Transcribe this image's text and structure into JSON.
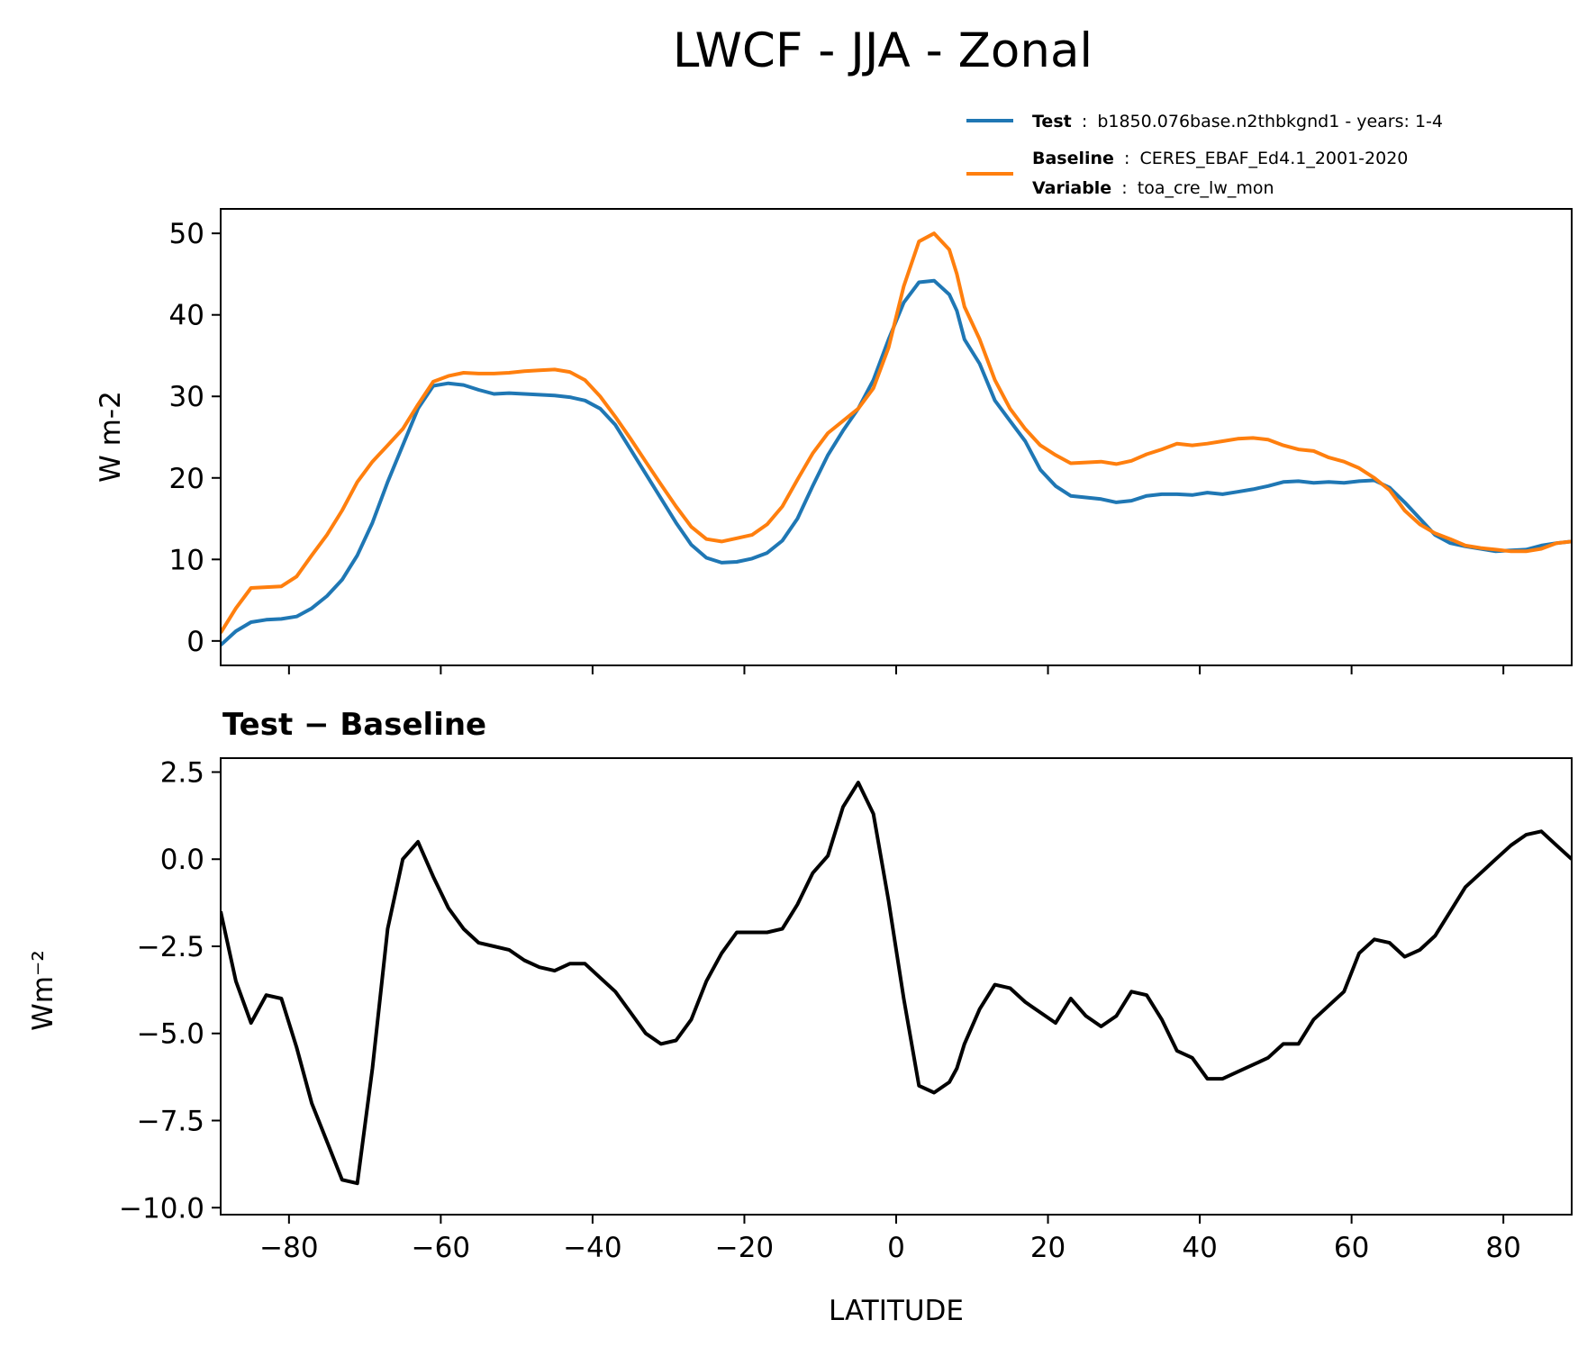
{
  "title": "LWCF - JJA - Zonal",
  "legend": {
    "test_label": "Test",
    "test_value": "b1850.076base.n2thbkgnd1 - years: 1-4",
    "baseline_label": "Baseline",
    "baseline_value": "CERES_EBAF_Ed4.1_2001-2020",
    "variable_label": "Variable",
    "variable_value": "toa_cre_lw_mon",
    "separator": ":"
  },
  "colors": {
    "test": "#1f77b4",
    "baseline": "#ff7f0e",
    "diff": "#000000"
  },
  "chart_data": [
    {
      "type": "line",
      "ylabel": "W m-2",
      "xlim": [
        -89,
        89
      ],
      "ylim": [
        -3,
        53
      ],
      "yticks": [
        "0",
        "10",
        "20",
        "30",
        "40",
        "50"
      ],
      "grid": false,
      "legend_placement": "top-right above plot",
      "x": [
        -89,
        -87,
        -85,
        -83,
        -81,
        -79,
        -77,
        -75,
        -73,
        -71,
        -69,
        -67,
        -65,
        -63,
        -61,
        -59,
        -57,
        -55,
        -53,
        -51,
        -49,
        -47,
        -45,
        -43,
        -41,
        -39,
        -37,
        -35,
        -33,
        -31,
        -29,
        -27,
        -25,
        -23,
        -21,
        -19,
        -17,
        -15,
        -13,
        -11,
        -9,
        -7,
        -5,
        -3,
        -1,
        1,
        3,
        5,
        7,
        8,
        9,
        11,
        13,
        15,
        17,
        19,
        21,
        23,
        25,
        27,
        29,
        31,
        33,
        35,
        37,
        39,
        41,
        43,
        45,
        47,
        49,
        51,
        53,
        55,
        57,
        59,
        61,
        63,
        65,
        67,
        69,
        71,
        73,
        75,
        77,
        79,
        81,
        83,
        85,
        87,
        89
      ],
      "series": [
        {
          "name": "Test",
          "values": [
            -0.5,
            1.2,
            2.3,
            2.6,
            2.7,
            3.0,
            4.0,
            5.5,
            7.5,
            10.5,
            14.5,
            19.5,
            24.0,
            28.5,
            31.3,
            31.6,
            31.4,
            30.8,
            30.3,
            30.4,
            30.3,
            30.2,
            30.1,
            29.9,
            29.5,
            28.5,
            26.5,
            23.5,
            20.5,
            17.5,
            14.5,
            11.8,
            10.2,
            9.6,
            9.7,
            10.1,
            10.8,
            12.3,
            15.0,
            19.0,
            22.8,
            25.8,
            28.5,
            32.0,
            37.0,
            41.5,
            44.0,
            44.2,
            42.5,
            40.5,
            37.0,
            34.0,
            29.5,
            27.0,
            24.5,
            21.0,
            19.0,
            17.8,
            17.6,
            17.4,
            17.0,
            17.2,
            17.8,
            18.0,
            18.0,
            17.9,
            18.2,
            18.0,
            18.3,
            18.6,
            19.0,
            19.5,
            19.6,
            19.4,
            19.5,
            19.4,
            19.6,
            19.7,
            18.8,
            17.0,
            15.0,
            13.0,
            12.0,
            11.6,
            11.3,
            11.0,
            11.1,
            11.2,
            11.7,
            12.0,
            12.2
          ]
        },
        {
          "name": "Baseline",
          "values": [
            1.0,
            4.0,
            6.5,
            6.6,
            6.7,
            7.9,
            10.5,
            13.0,
            16.0,
            19.5,
            22.0,
            24.0,
            26.0,
            29.0,
            31.8,
            32.5,
            32.9,
            32.8,
            32.8,
            32.9,
            33.1,
            33.2,
            33.3,
            33.0,
            32.0,
            30.0,
            27.5,
            24.8,
            22.0,
            19.2,
            16.5,
            14.0,
            12.5,
            12.2,
            12.6,
            13.0,
            14.3,
            16.5,
            19.8,
            23.0,
            25.5,
            27.0,
            28.5,
            31.0,
            36.0,
            43.5,
            49.0,
            50.0,
            48.0,
            45.0,
            41.0,
            37.0,
            32.0,
            28.5,
            26.0,
            24.0,
            22.8,
            21.8,
            21.9,
            22.0,
            21.7,
            22.1,
            22.9,
            23.5,
            24.2,
            24.0,
            24.2,
            24.5,
            24.8,
            24.9,
            24.7,
            24.0,
            23.5,
            23.3,
            22.5,
            22.0,
            21.2,
            20.0,
            18.5,
            16.0,
            14.3,
            13.2,
            12.5,
            11.7,
            11.4,
            11.2,
            11.0,
            11.0,
            11.3,
            12.0,
            12.2
          ]
        }
      ]
    },
    {
      "type": "line",
      "title": "Test − Baseline",
      "xlabel": "LATITUDE",
      "ylabel": "Wm⁻²",
      "xlim": [
        -89,
        89
      ],
      "ylim": [
        -10.2,
        2.9
      ],
      "xticks": [
        "−80",
        "−60",
        "−40",
        "−20",
        "0",
        "20",
        "40",
        "60",
        "80"
      ],
      "yticks": [
        "2.5",
        "0.0",
        "−2.5",
        "−5.0",
        "−7.5",
        "−10.0"
      ],
      "grid": false,
      "x": [
        -89,
        -87,
        -85,
        -83,
        -81,
        -79,
        -77,
        -75,
        -73,
        -71,
        -69,
        -67,
        -65,
        -63,
        -61,
        -59,
        -57,
        -55,
        -53,
        -51,
        -49,
        -47,
        -45,
        -43,
        -41,
        -39,
        -37,
        -35,
        -33,
        -31,
        -29,
        -27,
        -25,
        -23,
        -21,
        -19,
        -17,
        -15,
        -13,
        -11,
        -9,
        -7,
        -5,
        -3,
        -1,
        1,
        3,
        5,
        7,
        8,
        9,
        11,
        13,
        15,
        17,
        19,
        21,
        23,
        25,
        27,
        29,
        31,
        33,
        35,
        37,
        39,
        41,
        43,
        45,
        47,
        49,
        51,
        53,
        55,
        57,
        59,
        61,
        63,
        65,
        67,
        69,
        71,
        73,
        75,
        77,
        79,
        81,
        83,
        85,
        87,
        89
      ],
      "series": [
        {
          "name": "Test − Baseline",
          "values": [
            -1.5,
            -3.5,
            -4.7,
            -3.9,
            -4.0,
            -5.4,
            -7.0,
            -8.1,
            -9.2,
            -9.3,
            -6.0,
            -2.0,
            0.0,
            0.5,
            -0.5,
            -1.4,
            -2.0,
            -2.4,
            -2.5,
            -2.6,
            -2.9,
            -3.1,
            -3.2,
            -3.0,
            -3.0,
            -3.4,
            -3.8,
            -4.4,
            -5.0,
            -5.3,
            -5.2,
            -4.6,
            -3.5,
            -2.7,
            -2.1,
            -2.1,
            -2.1,
            -2.0,
            -1.3,
            -0.4,
            0.1,
            1.5,
            2.2,
            1.3,
            -1.2,
            -4.0,
            -6.5,
            -6.7,
            -6.4,
            -6.0,
            -5.3,
            -4.3,
            -3.6,
            -3.7,
            -4.1,
            -4.4,
            -4.7,
            -4.0,
            -4.5,
            -4.8,
            -4.5,
            -3.8,
            -3.9,
            -4.6,
            -5.5,
            -5.7,
            -6.3,
            -6.3,
            -6.1,
            -5.9,
            -5.7,
            -5.3,
            -5.3,
            -4.6,
            -4.2,
            -3.8,
            -2.7,
            -2.3,
            -2.4,
            -2.8,
            -2.6,
            -2.2,
            -1.5,
            -0.8,
            -0.4,
            0.0,
            0.4,
            0.7,
            0.8,
            0.4,
            0.0
          ]
        }
      ]
    }
  ]
}
